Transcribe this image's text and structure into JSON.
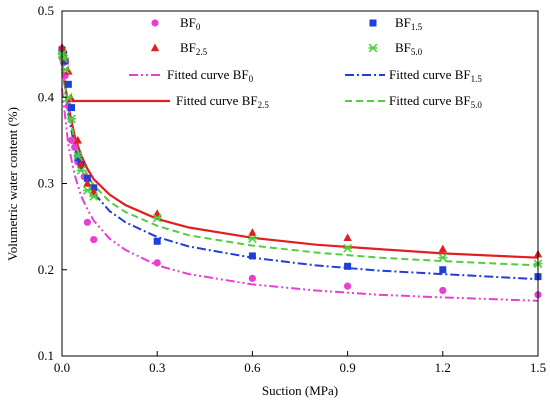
{
  "chart_data": {
    "type": "scatter",
    "xlabel": "Suction (MPa)",
    "ylabel": "Volumetric water content (%)",
    "xlim": [
      0,
      1.5
    ],
    "ylim": [
      0.1,
      0.5
    ],
    "xticks": [
      "0.0",
      "0.3",
      "0.6",
      "0.9",
      "1.2",
      "1.5"
    ],
    "yticks": [
      "0.1",
      "0.2",
      "0.3",
      "0.4",
      "0.5"
    ],
    "grid": false,
    "legend_position": "top",
    "series": [
      {
        "name": "BF0",
        "base": "BF",
        "sub": "0",
        "marker": "circle",
        "color": "#e83fd0",
        "x": [
          0.0,
          0.005,
          0.01,
          0.02,
          0.03,
          0.04,
          0.05,
          0.07,
          0.08,
          0.1,
          0.3,
          0.6,
          0.9,
          1.2,
          1.5
        ],
        "y": [
          0.446,
          0.44,
          0.425,
          0.39,
          0.35,
          0.342,
          0.325,
          0.308,
          0.255,
          0.235,
          0.208,
          0.19,
          0.181,
          0.176,
          0.171
        ]
      },
      {
        "name": "BF1.5",
        "base": "BF",
        "sub": "1.5",
        "marker": "square",
        "color": "#1f3fd8",
        "x": [
          0.0,
          0.005,
          0.01,
          0.02,
          0.03,
          0.05,
          0.06,
          0.08,
          0.1,
          0.3,
          0.6,
          0.9,
          1.2,
          1.5
        ],
        "y": [
          0.455,
          0.45,
          0.442,
          0.415,
          0.388,
          0.33,
          0.322,
          0.306,
          0.295,
          0.233,
          0.216,
          0.204,
          0.2,
          0.192
        ]
      },
      {
        "name": "BF2.5",
        "base": "BF",
        "sub": "2.5",
        "marker": "triangle",
        "color": "#e02020",
        "x": [
          0.0,
          0.005,
          0.01,
          0.02,
          0.03,
          0.05,
          0.06,
          0.08,
          0.1,
          0.3,
          0.6,
          0.9,
          1.2,
          1.5
        ],
        "y": [
          0.458,
          0.452,
          0.445,
          0.43,
          0.398,
          0.35,
          0.322,
          0.3,
          0.29,
          0.265,
          0.243,
          0.237,
          0.224,
          0.218
        ]
      },
      {
        "name": "BF5.0",
        "base": "BF",
        "sub": "5.0",
        "marker": "star",
        "color": "#4fcf3f",
        "x": [
          0.0,
          0.005,
          0.01,
          0.02,
          0.03,
          0.05,
          0.06,
          0.08,
          0.1,
          0.3,
          0.6,
          0.9,
          1.2,
          1.5
        ],
        "y": [
          0.45,
          0.445,
          0.432,
          0.4,
          0.375,
          0.332,
          0.315,
          0.292,
          0.285,
          0.26,
          0.236,
          0.225,
          0.214,
          0.207
        ]
      }
    ],
    "fitted_curves": [
      {
        "name": "Fitted curve BF0",
        "base": "Fitted curve BF",
        "sub": "0",
        "color": "#e83fd0",
        "dash": "dashdotdot",
        "x": [
          0.0,
          0.02,
          0.04,
          0.06,
          0.08,
          0.1,
          0.15,
          0.2,
          0.3,
          0.4,
          0.6,
          0.8,
          1.0,
          1.2,
          1.5
        ],
        "y": [
          0.41,
          0.345,
          0.31,
          0.286,
          0.27,
          0.257,
          0.236,
          0.223,
          0.205,
          0.195,
          0.183,
          0.176,
          0.171,
          0.168,
          0.164
        ]
      },
      {
        "name": "Fitted curve BF1.5",
        "base": "Fitted curve BF",
        "sub": "1.5",
        "color": "#1f3fd8",
        "dash": "dashdot",
        "x": [
          0.0,
          0.02,
          0.04,
          0.06,
          0.08,
          0.1,
          0.15,
          0.2,
          0.3,
          0.4,
          0.6,
          0.8,
          1.0,
          1.2,
          1.5
        ],
        "y": [
          0.44,
          0.38,
          0.342,
          0.318,
          0.301,
          0.289,
          0.268,
          0.255,
          0.238,
          0.227,
          0.214,
          0.205,
          0.199,
          0.195,
          0.189
        ]
      },
      {
        "name": "Fitted curve BF2.5",
        "base": "Fitted curve BF",
        "sub": "2.5",
        "color": "#e02020",
        "dash": "solid",
        "x": [
          0.0,
          0.02,
          0.04,
          0.06,
          0.08,
          0.1,
          0.15,
          0.2,
          0.3,
          0.4,
          0.6,
          0.8,
          1.0,
          1.2,
          1.5
        ],
        "y": [
          0.44,
          0.39,
          0.355,
          0.333,
          0.317,
          0.305,
          0.287,
          0.275,
          0.259,
          0.249,
          0.237,
          0.229,
          0.224,
          0.219,
          0.214
        ]
      },
      {
        "name": "Fitted curve BF5.0",
        "base": "Fitted curve BF",
        "sub": "5.0",
        "color": "#4fcf3f",
        "dash": "dashed",
        "x": [
          0.0,
          0.02,
          0.04,
          0.06,
          0.08,
          0.1,
          0.15,
          0.2,
          0.3,
          0.4,
          0.6,
          0.8,
          1.0,
          1.2,
          1.5
        ],
        "y": [
          0.44,
          0.385,
          0.349,
          0.326,
          0.31,
          0.298,
          0.279,
          0.267,
          0.251,
          0.24,
          0.228,
          0.22,
          0.214,
          0.21,
          0.205
        ]
      }
    ]
  }
}
